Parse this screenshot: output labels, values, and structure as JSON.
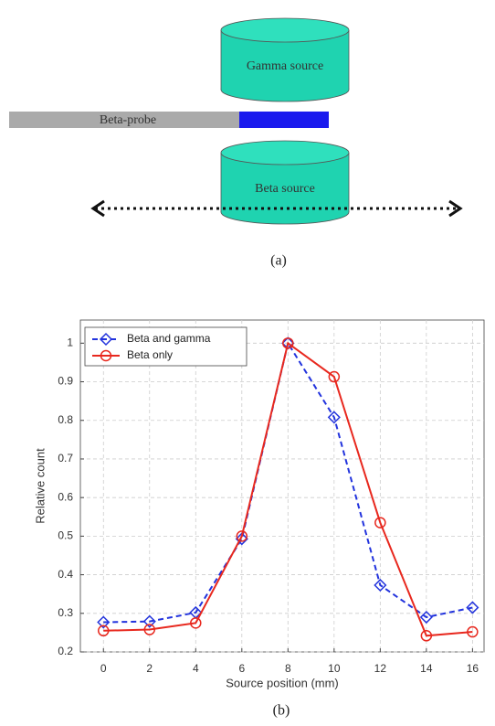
{
  "diagram": {
    "gamma_label": "Gamma source",
    "probe_label": "Beta-probe",
    "beta_label": "Beta source",
    "caption": "(a)"
  },
  "chart_data": {
    "type": "line",
    "caption": "(b)",
    "x_label": "Source position (mm)",
    "y_label": "Relative count",
    "x": [
      0,
      2,
      4,
      6,
      8,
      10,
      12,
      14,
      16
    ],
    "series": [
      {
        "name": "Beta and gamma",
        "color": "#2233dd",
        "marker": "diamond",
        "dash": true,
        "values": [
          0.277,
          0.279,
          0.302,
          0.493,
          1.0,
          0.808,
          0.373,
          0.29,
          0.315
        ]
      },
      {
        "name": "Beta only",
        "color": "#e8281e",
        "marker": "circle",
        "dash": false,
        "values": [
          0.255,
          0.258,
          0.275,
          0.5,
          1.0,
          0.913,
          0.535,
          0.242,
          0.252
        ]
      }
    ],
    "xlim": [
      -1,
      16.5
    ],
    "ylim": [
      0.2,
      1.06
    ],
    "xticks": [
      0,
      2,
      4,
      6,
      8,
      10,
      12,
      14,
      16
    ],
    "yticks": [
      0.2,
      0.3,
      0.4,
      0.5,
      0.6,
      0.7,
      0.8,
      0.9,
      1
    ],
    "grid": true,
    "legend": "upper left"
  }
}
